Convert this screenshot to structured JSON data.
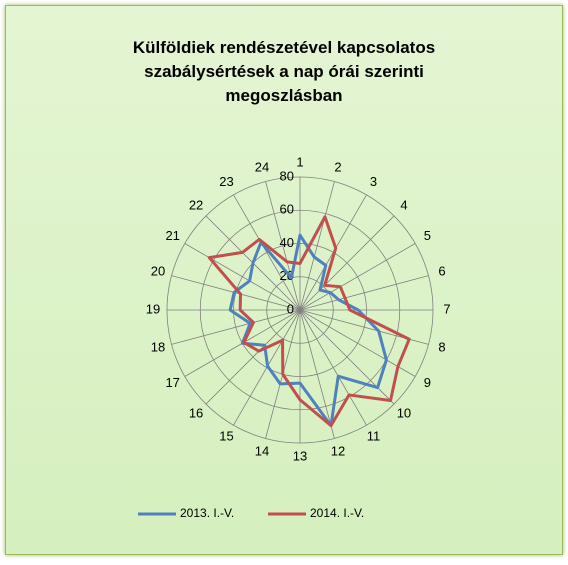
{
  "chart_data": {
    "type": "radar",
    "title": "Külföldiek rendészetével kapcsolatos szabálysértések a nap órái szerinti megoszlásban",
    "categories": [
      "1",
      "2",
      "3",
      "4",
      "5",
      "6",
      "7",
      "8",
      "9",
      "10",
      "11",
      "12",
      "13",
      "14",
      "15",
      "16",
      "17",
      "18",
      "19",
      "20",
      "21",
      "22",
      "23",
      "24"
    ],
    "series": [
      {
        "name": "2013. I.-V.",
        "color": "#4f81bd",
        "values": [
          45,
          33,
          31,
          17,
          21,
          24,
          35,
          49,
          60,
          66,
          46,
          72,
          44,
          46,
          39,
          30,
          40,
          31,
          42,
          41,
          35,
          40,
          47,
          20
        ]
      },
      {
        "name": "2014. I.-V.",
        "color": "#c0504d",
        "values": [
          28,
          58,
          43,
          21,
          28,
          28,
          30,
          68,
          68,
          77,
          59,
          72,
          54,
          40,
          21,
          35,
          39,
          29,
          36,
          37,
          63,
          49,
          49,
          30
        ]
      }
    ],
    "ylim": [
      0,
      80
    ],
    "yticks": [
      0,
      20,
      40,
      60,
      80
    ],
    "grid": true,
    "legend": "bottom"
  }
}
